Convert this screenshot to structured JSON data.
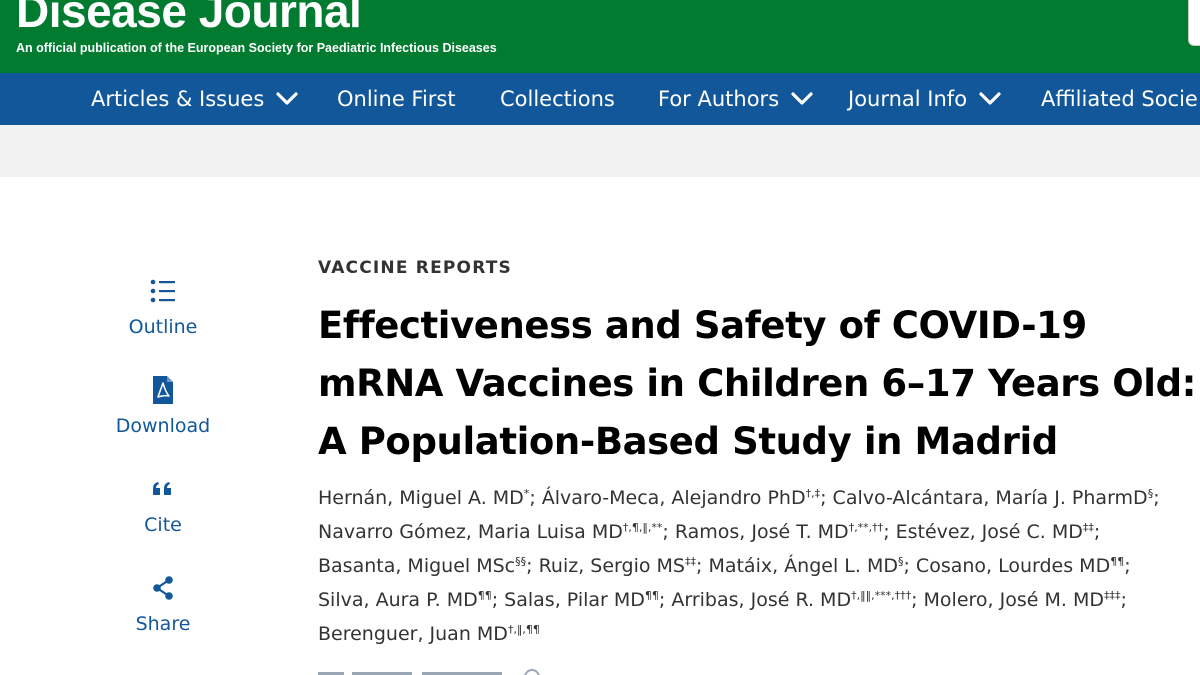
{
  "journal": {
    "title": "Disease Journal",
    "subtitle": "An official publication of the European Society for Paediatric Infectious Diseases"
  },
  "nav": {
    "items": [
      {
        "label": "Articles & Issues",
        "dropdown": true
      },
      {
        "label": "Online First",
        "dropdown": false
      },
      {
        "label": "Collections",
        "dropdown": false
      },
      {
        "label": "For Authors",
        "dropdown": true
      },
      {
        "label": "Journal Info",
        "dropdown": true
      },
      {
        "label": "Affiliated Socie",
        "dropdown": false
      }
    ]
  },
  "tools": [
    {
      "label": "Outline",
      "icon": "list-icon"
    },
    {
      "label": "Download",
      "icon": "pdf-icon"
    },
    {
      "label": "Cite",
      "icon": "quote-icon"
    },
    {
      "label": "Share",
      "icon": "share-icon"
    }
  ],
  "article": {
    "type": "VACCINE REPORTS",
    "title_lines": [
      "Effectiveness and Safety of COVID-19",
      "mRNA Vaccines in Children 6–17 Years Old:",
      "A Population-Based Study in Madrid"
    ],
    "authors": [
      {
        "name": "Hernán, Miguel A. MD",
        "sup": "*"
      },
      {
        "name": "Álvaro-Meca, Alejandro PhD",
        "sup": "†,‡"
      },
      {
        "name": "Calvo-Alcántara, María J. PharmD",
        "sup": "§"
      },
      {
        "name": "Navarro Gómez, Maria Luisa MD",
        "sup": "†,¶,‖,**"
      },
      {
        "name": "Ramos, José T. MD",
        "sup": "†,**,††"
      },
      {
        "name": "Estévez, José C. MD",
        "sup": "‡‡"
      },
      {
        "name": "Basanta, Miguel MSc",
        "sup": "§§"
      },
      {
        "name": "Ruiz, Sergio MS",
        "sup": "‡‡"
      },
      {
        "name": "Matáix, Ángel L. MD",
        "sup": "§"
      },
      {
        "name": "Cosano, Lourdes MD",
        "sup": "¶¶"
      },
      {
        "name": "Silva, Aura P. MD",
        "sup": "¶¶"
      },
      {
        "name": "Salas, Pilar MD",
        "sup": "¶¶"
      },
      {
        "name": "Arribas, José R. MD",
        "sup": "†,‖‖,***,†††"
      },
      {
        "name": "Molero, José M. MD",
        "sup": "‡‡‡"
      },
      {
        "name": "Berenguer, Juan MD",
        "sup": "†,‖,¶¶"
      }
    ],
    "separator": "; "
  },
  "colors": {
    "brand_green": "#007b2f",
    "nav_blue": "#12579a",
    "link_blue": "#12579a",
    "band_gray": "#f2f2f2"
  }
}
